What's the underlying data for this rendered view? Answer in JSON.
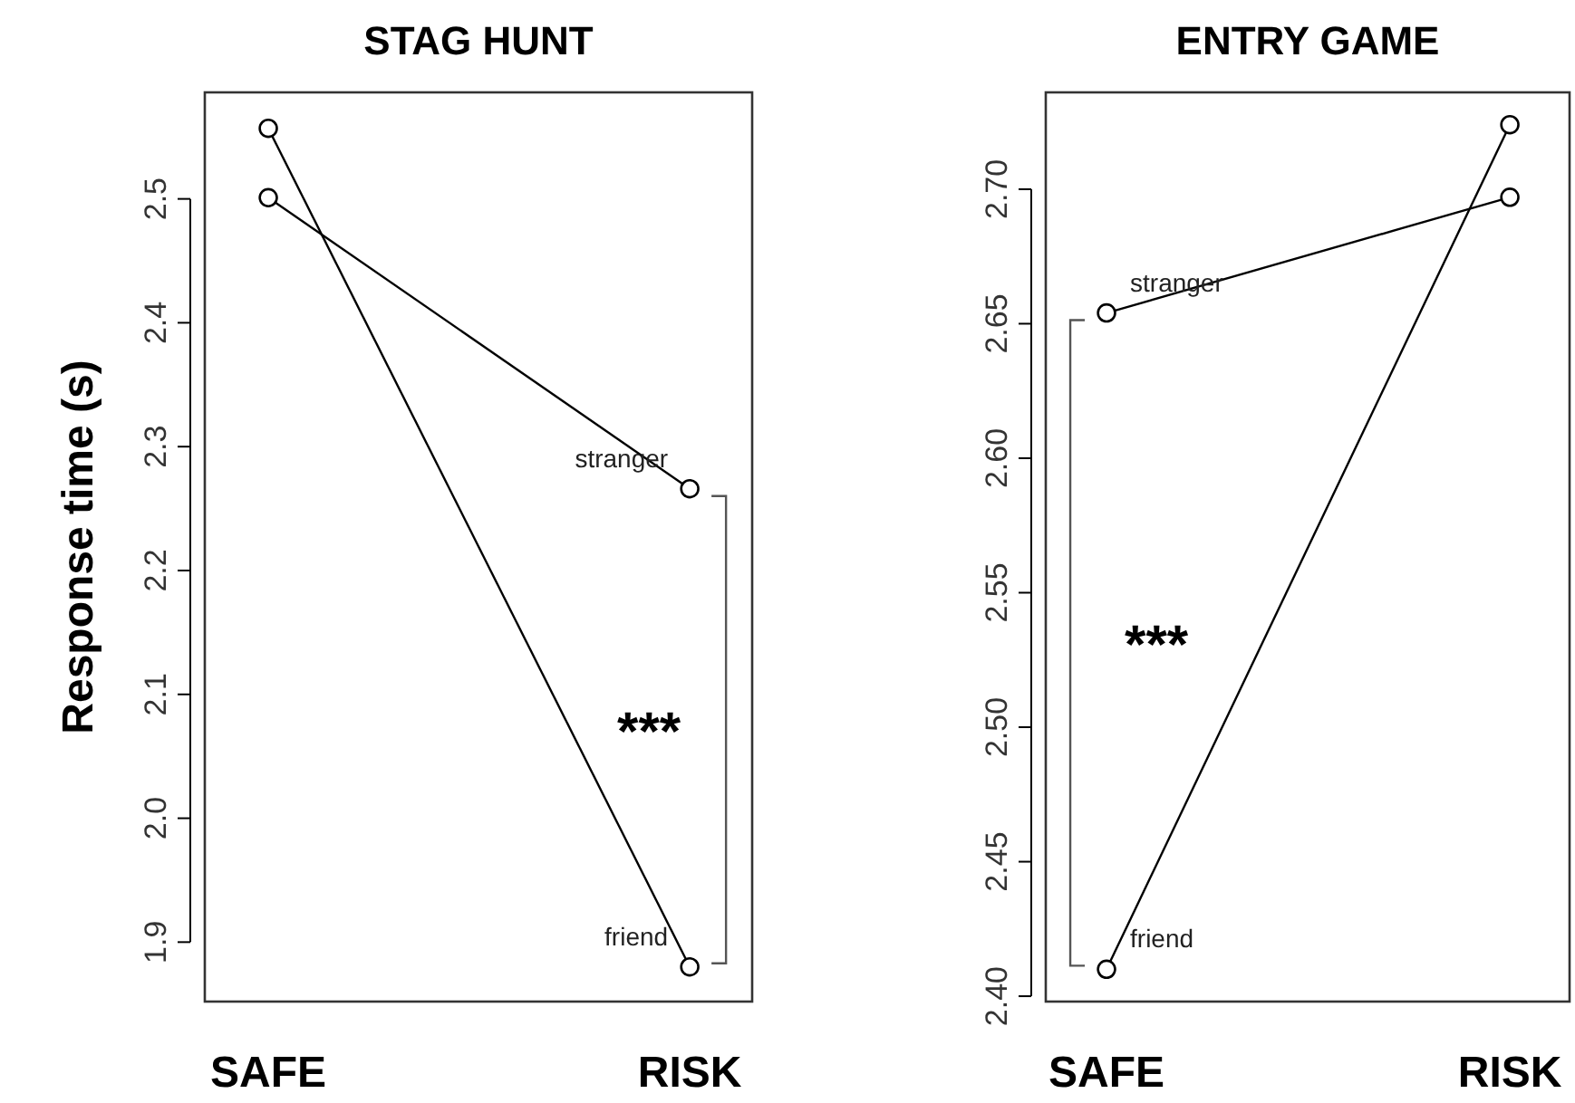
{
  "chart_data": [
    {
      "type": "line",
      "title": "STAG HUNT",
      "ylabel": "Response time (s)",
      "categories": [
        "SAFE",
        "RISK"
      ],
      "marker": "circle",
      "line_style": "solid",
      "grid": false,
      "series": [
        {
          "name": "friend",
          "color": "#000000",
          "values": [
            2.557,
            1.88
          ]
        },
        {
          "name": "stranger",
          "color": "#000000",
          "values": [
            2.501,
            2.266
          ]
        }
      ],
      "ylim": [
        1.852,
        2.586
      ],
      "yticks": [
        1.9,
        {
          "value": 2.0,
          "label": "2.0"
        },
        2.1,
        2.2,
        2.3,
        2.4,
        2.5
      ],
      "annotations": [
        "***"
      ]
    },
    {
      "type": "line",
      "title": "ENTRY GAME",
      "categories": [
        "SAFE",
        "RISK"
      ],
      "marker": "circle",
      "line_style": "solid",
      "grid": false,
      "series": [
        {
          "name": "friend",
          "color": "#000000",
          "values": [
            2.41,
            2.724
          ]
        },
        {
          "name": "stranger",
          "color": "#000000",
          "values": [
            2.654,
            2.697
          ]
        }
      ],
      "ylim": [
        2.398,
        2.736
      ],
      "yticks": [
        {
          "value": 2.4,
          "label": "2.40"
        },
        2.45,
        {
          "value": 2.5,
          "label": "2.50"
        },
        2.55,
        {
          "value": 2.6,
          "label": "2.60"
        },
        2.65,
        {
          "value": 2.7,
          "label": "2.70"
        }
      ],
      "annotations": [
        "***"
      ]
    }
  ]
}
